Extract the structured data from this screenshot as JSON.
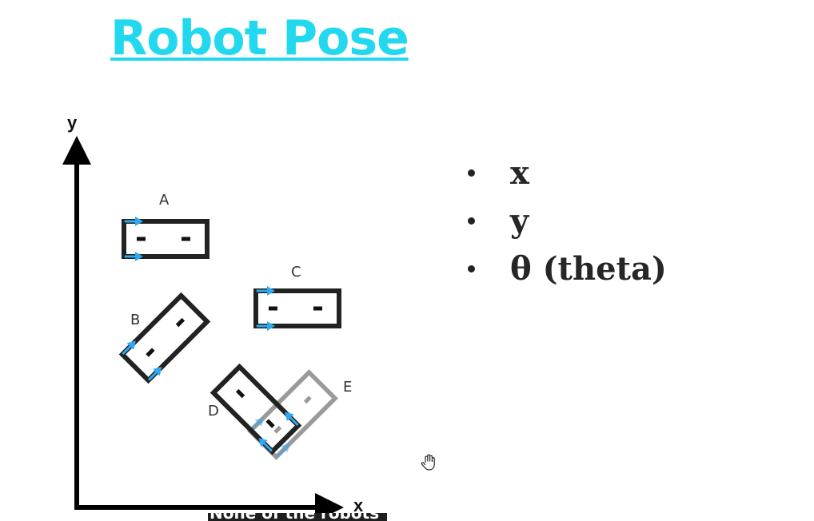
{
  "title": "Robot Pose",
  "diagram": {
    "axes": {
      "x_label": "x",
      "y_label": "y"
    },
    "robots": [
      {
        "label": "A",
        "heading_deg": 0
      },
      {
        "label": "B",
        "heading_deg": 45
      },
      {
        "label": "C",
        "heading_deg": 0
      },
      {
        "label": "D",
        "heading_deg": 135
      },
      {
        "label": "E",
        "heading_deg": 45,
        "style": "faded"
      }
    ],
    "colors": {
      "robot_outline": "#222222",
      "robot_faded": "#9a9a9a",
      "wheel_arrow": "#2ea8f0",
      "axes": "#000000"
    }
  },
  "bullets": [
    "x",
    "y",
    "θ (theta)"
  ],
  "cursor_icon": "hand-cursor-icon",
  "caption": "None of the robots"
}
